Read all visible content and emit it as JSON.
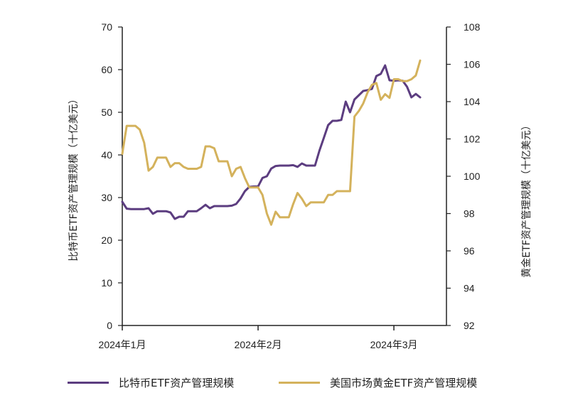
{
  "chart_data": {
    "type": "line",
    "y_left": {
      "label": "比特币ETF资产管理规模（十亿美元）",
      "ylim": [
        0,
        70
      ],
      "ticks": [
        0,
        10,
        20,
        30,
        40,
        50,
        60,
        70
      ]
    },
    "y_right": {
      "label": "黄金ETF资产管理规模（十亿美元）",
      "ylim": [
        92,
        108
      ],
      "ticks": [
        92,
        94,
        96,
        98,
        100,
        102,
        104,
        106,
        108
      ]
    },
    "x_ticks": [
      {
        "label": "2024年1月",
        "day": 0
      },
      {
        "label": "2024年2月",
        "day": 31
      },
      {
        "label": "2024年3月",
        "day": 62
      }
    ],
    "x_range": [
      0,
      74
    ],
    "legend_position": "bottom",
    "series": [
      {
        "name": "比特币ETF资产管理规模",
        "axis": "left",
        "color": "#5c3d80",
        "points": [
          [
            0,
            29
          ],
          [
            1,
            27.4
          ],
          [
            2,
            27.3
          ],
          [
            3,
            27.3
          ],
          [
            4,
            27.3
          ],
          [
            5,
            27.3
          ],
          [
            6,
            27.5
          ],
          [
            7,
            26.2
          ],
          [
            8,
            26.8
          ],
          [
            9,
            26.8
          ],
          [
            10,
            26.8
          ],
          [
            11,
            26.5
          ],
          [
            12,
            25
          ],
          [
            13,
            25.5
          ],
          [
            14,
            25.5
          ],
          [
            15,
            26.8
          ],
          [
            16,
            26.8
          ],
          [
            17,
            26.8
          ],
          [
            18,
            27.5
          ],
          [
            19,
            28.3
          ],
          [
            20,
            27.5
          ],
          [
            21,
            28
          ],
          [
            22,
            28
          ],
          [
            23,
            28
          ],
          [
            24,
            28
          ],
          [
            25,
            28.1
          ],
          [
            26,
            28.5
          ],
          [
            27,
            29.8
          ],
          [
            28,
            31.5
          ],
          [
            29,
            32.5
          ],
          [
            30,
            32.6
          ],
          [
            31,
            32.6
          ],
          [
            32,
            34.6
          ],
          [
            33,
            35
          ],
          [
            34,
            36.8
          ],
          [
            35,
            37.4
          ],
          [
            36,
            37.5
          ],
          [
            37,
            37.5
          ],
          [
            38,
            37.5
          ],
          [
            39,
            37.6
          ],
          [
            40,
            37.2
          ],
          [
            41,
            38
          ],
          [
            42,
            37.5
          ],
          [
            43,
            37.5
          ],
          [
            44,
            37.5
          ],
          [
            45,
            41
          ],
          [
            46,
            44
          ],
          [
            47,
            47
          ],
          [
            48,
            48
          ],
          [
            49,
            48
          ],
          [
            50,
            48.2
          ],
          [
            51,
            52.5
          ],
          [
            52,
            50
          ],
          [
            53,
            53
          ],
          [
            54,
            54
          ],
          [
            55,
            55
          ],
          [
            56,
            55.2
          ],
          [
            57,
            55.5
          ],
          [
            58,
            58.5
          ],
          [
            59,
            59
          ],
          [
            60,
            61
          ],
          [
            61,
            57.5
          ],
          [
            62,
            57.4
          ],
          [
            63,
            57.5
          ],
          [
            64,
            57.4
          ],
          [
            65,
            56
          ],
          [
            66,
            53.5
          ],
          [
            67,
            54.3
          ],
          [
            68,
            53.5
          ]
        ]
      },
      {
        "name": "美国市场黄金ETF资产管理规模",
        "axis": "right",
        "color": "#d4b25c",
        "points": [
          [
            0,
            101.2
          ],
          [
            1,
            102.7
          ],
          [
            2,
            102.7
          ],
          [
            3,
            102.7
          ],
          [
            4,
            102.5
          ],
          [
            5,
            101.8
          ],
          [
            6,
            100.3
          ],
          [
            7,
            100.5
          ],
          [
            8,
            101
          ],
          [
            9,
            101
          ],
          [
            10,
            101
          ],
          [
            11,
            100.5
          ],
          [
            12,
            100.7
          ],
          [
            13,
            100.7
          ],
          [
            14,
            100.5
          ],
          [
            15,
            100.4
          ],
          [
            16,
            100.4
          ],
          [
            17,
            100.4
          ],
          [
            18,
            100.5
          ],
          [
            19,
            101.6
          ],
          [
            20,
            101.6
          ],
          [
            21,
            101.5
          ],
          [
            22,
            100.8
          ],
          [
            23,
            100.8
          ],
          [
            24,
            100.8
          ],
          [
            25,
            100
          ],
          [
            26,
            100.4
          ],
          [
            27,
            100.5
          ],
          [
            28,
            99.9
          ],
          [
            29,
            99.4
          ],
          [
            30,
            99.4
          ],
          [
            31,
            99.4
          ],
          [
            32,
            99
          ],
          [
            33,
            98
          ],
          [
            34,
            97.4
          ],
          [
            35,
            98.1
          ],
          [
            36,
            97.8
          ],
          [
            37,
            97.8
          ],
          [
            38,
            97.8
          ],
          [
            39,
            98.5
          ],
          [
            40,
            99.1
          ],
          [
            41,
            98.8
          ],
          [
            42,
            98.4
          ],
          [
            43,
            98.6
          ],
          [
            44,
            98.6
          ],
          [
            45,
            98.6
          ],
          [
            46,
            98.6
          ],
          [
            47,
            99
          ],
          [
            48,
            99
          ],
          [
            49,
            99.2
          ],
          [
            50,
            99.2
          ],
          [
            51,
            99.2
          ],
          [
            52,
            99.2
          ],
          [
            53,
            103.2
          ],
          [
            54,
            103.5
          ],
          [
            55,
            103.9
          ],
          [
            56,
            104.5
          ],
          [
            57,
            104.9
          ],
          [
            58,
            105
          ],
          [
            59,
            104.1
          ],
          [
            60,
            104.4
          ],
          [
            61,
            104.2
          ],
          [
            62,
            105.2
          ],
          [
            63,
            105.2
          ],
          [
            64,
            105.1
          ],
          [
            65,
            105.1
          ],
          [
            66,
            105.2
          ],
          [
            67,
            105.4
          ],
          [
            68,
            106.2
          ]
        ]
      }
    ]
  }
}
